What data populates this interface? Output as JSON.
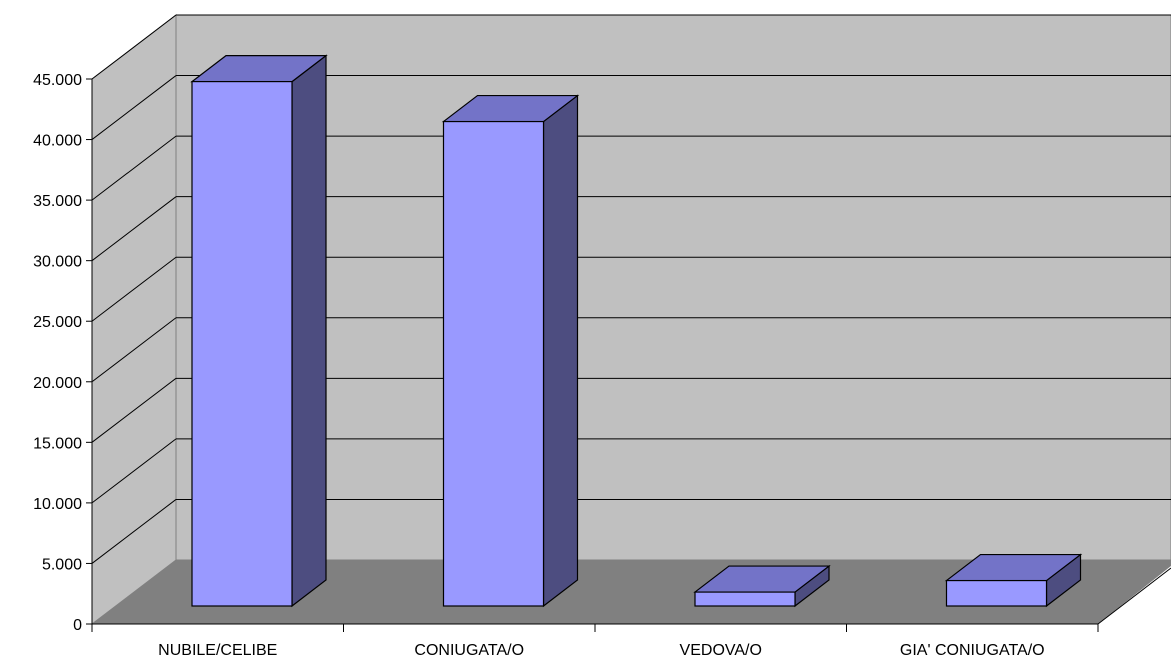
{
  "chart_data": {
    "type": "bar",
    "style": "3d-column",
    "categories": [
      "NUBILE/CELIBE",
      "CONIUGATA/O",
      "VEDOVA/O",
      "GIA' CONIUGATA/O"
    ],
    "values": [
      43300,
      40000,
      1150,
      2100
    ],
    "ylim": [
      0,
      45000
    ],
    "yticks": [
      {
        "value": 0,
        "label": "0"
      },
      {
        "value": 5000,
        "label": "5.000"
      },
      {
        "value": 10000,
        "label": "10.000"
      },
      {
        "value": 15000,
        "label": "15.000"
      },
      {
        "value": 20000,
        "label": "20.000"
      },
      {
        "value": 25000,
        "label": "25.000"
      },
      {
        "value": 30000,
        "label": "30.000"
      },
      {
        "value": 35000,
        "label": "35.000"
      },
      {
        "value": 40000,
        "label": "40.000"
      },
      {
        "value": 45000,
        "label": "45.000"
      }
    ],
    "grid": true,
    "legend": "none",
    "colors": {
      "bar_front": "#9999ff",
      "bar_top": "#7373c8",
      "bar_side": "#4d4d80",
      "back_wall": "#c0c0c0",
      "side_wall": "#c0c0c0",
      "floor": "#808080",
      "grid_line": "#000000"
    }
  }
}
